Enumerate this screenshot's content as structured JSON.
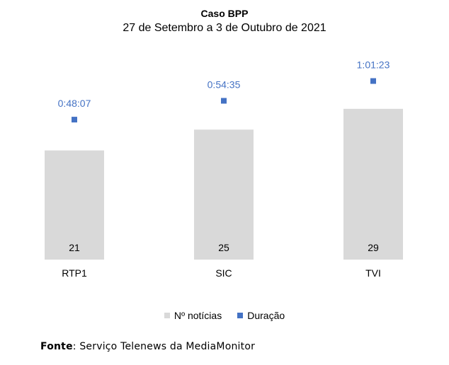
{
  "chart_data": {
    "type": "bar",
    "title": "Caso BPP",
    "subtitle": "27 de Setembro a 3 de Outubro de 2021",
    "categories": [
      "RTP1",
      "SIC",
      "TVI"
    ],
    "series": [
      {
        "name": "Nº notícias",
        "kind": "bar",
        "values": [
          21,
          25,
          29
        ],
        "color": "#d9d9d9"
      },
      {
        "name": "Duração",
        "kind": "marker",
        "values": [
          "0:48:07",
          "0:54:35",
          "1:01:23"
        ],
        "seconds": [
          2887,
          3275,
          3683
        ],
        "color": "#4472c4"
      }
    ],
    "legend_position": "bottom",
    "grid": false
  },
  "source": {
    "label": "Fonte",
    "text": ": Serviço Telenews da MediaMonitor"
  }
}
